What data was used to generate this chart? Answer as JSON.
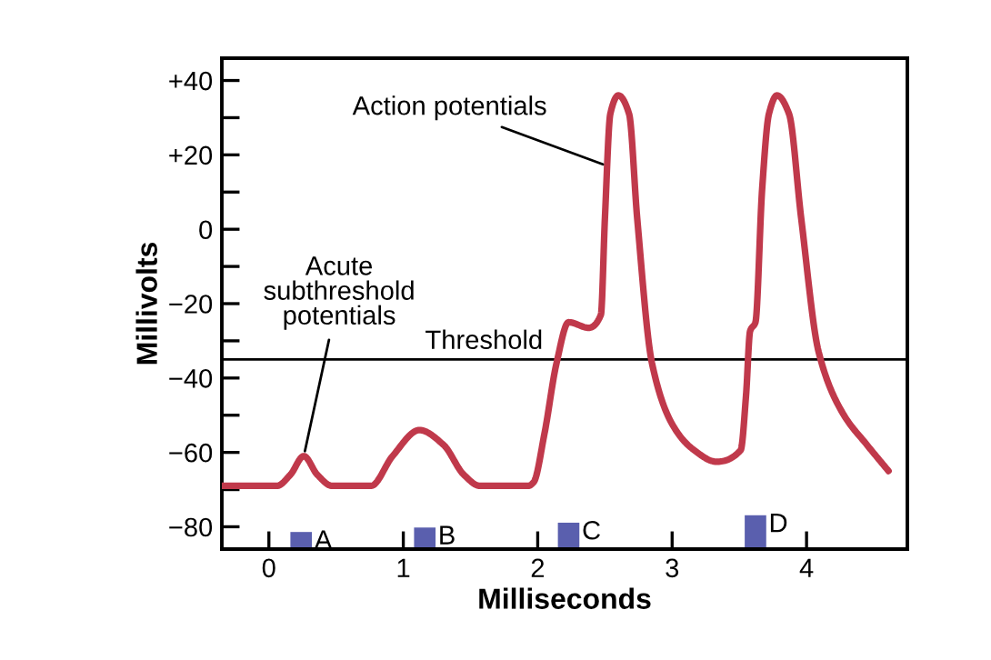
{
  "chart_data": {
    "type": "line",
    "xlabel": "Milliseconds",
    "ylabel": "Millivolts",
    "xlim": [
      -0.35,
      4.75
    ],
    "ylim": [
      -86,
      46
    ],
    "xticks": [
      0,
      1,
      2,
      3,
      4
    ],
    "yticks": [
      {
        "value": 40,
        "label": "+40"
      },
      {
        "value": 30,
        "label": null
      },
      {
        "value": 20,
        "label": "+20"
      },
      {
        "value": 10,
        "label": null
      },
      0,
      {
        "value": -10,
        "label": null
      },
      {
        "value": -20,
        "label": "−20"
      },
      {
        "value": -30,
        "label": null
      },
      {
        "value": -40,
        "label": "−40"
      },
      {
        "value": -50,
        "label": null
      },
      {
        "value": -60,
        "label": "−60"
      },
      {
        "value": -70,
        "label": null
      },
      {
        "value": -80,
        "label": "−80"
      }
    ],
    "grid": false,
    "legend": false,
    "series": [
      {
        "color": "#c0394b",
        "x": [
          -0.35,
          0.06,
          0.16,
          0.26,
          0.36,
          0.47,
          0.76,
          0.92,
          1.12,
          1.3,
          1.45,
          1.57,
          1.93,
          1.97,
          2.05,
          2.14,
          2.23,
          2.38,
          2.47,
          2.5,
          2.54,
          2.6,
          2.68,
          2.74,
          2.85,
          3.01,
          3.15,
          3.33,
          3.51,
          3.55,
          3.58,
          3.62,
          3.67,
          3.72,
          3.78,
          3.87,
          3.96,
          4.09,
          4.27,
          4.45,
          4.61
        ],
        "values": [
          -69,
          -69,
          -66,
          -61,
          -66,
          -69,
          -69,
          -61,
          -54,
          -58,
          -66,
          -69,
          -69,
          -68,
          -55,
          -36,
          -25,
          -26.5,
          -23,
          3,
          31,
          36,
          31,
          3,
          -36,
          -53,
          -59,
          -62.5,
          -59.4,
          -44.6,
          -27.4,
          -25,
          11,
          31,
          36,
          31,
          3,
          -33,
          -49.5,
          -58,
          -65
        ]
      },
      {
        "type": "bar",
        "color": "#5a5fae",
        "x": [
          0.24,
          1.16,
          2.23,
          3.62
        ],
        "base": [
          -86,
          -86,
          -86,
          -86
        ],
        "values": [
          4.6,
          5.8,
          7.1,
          9.1
        ],
        "value_labels": [
          "A",
          "B",
          "C",
          "D"
        ]
      }
    ],
    "ref_lines": [
      {
        "axis": "y",
        "value": -35,
        "label": "Threshold",
        "color": "#000000"
      }
    ],
    "annotations": [
      {
        "text": "Action potentials",
        "x": 2.52,
        "y": 17
      },
      {
        "text": "Acute\nsubthreshold\npotentials",
        "x": 0.26,
        "y": -61
      }
    ]
  }
}
